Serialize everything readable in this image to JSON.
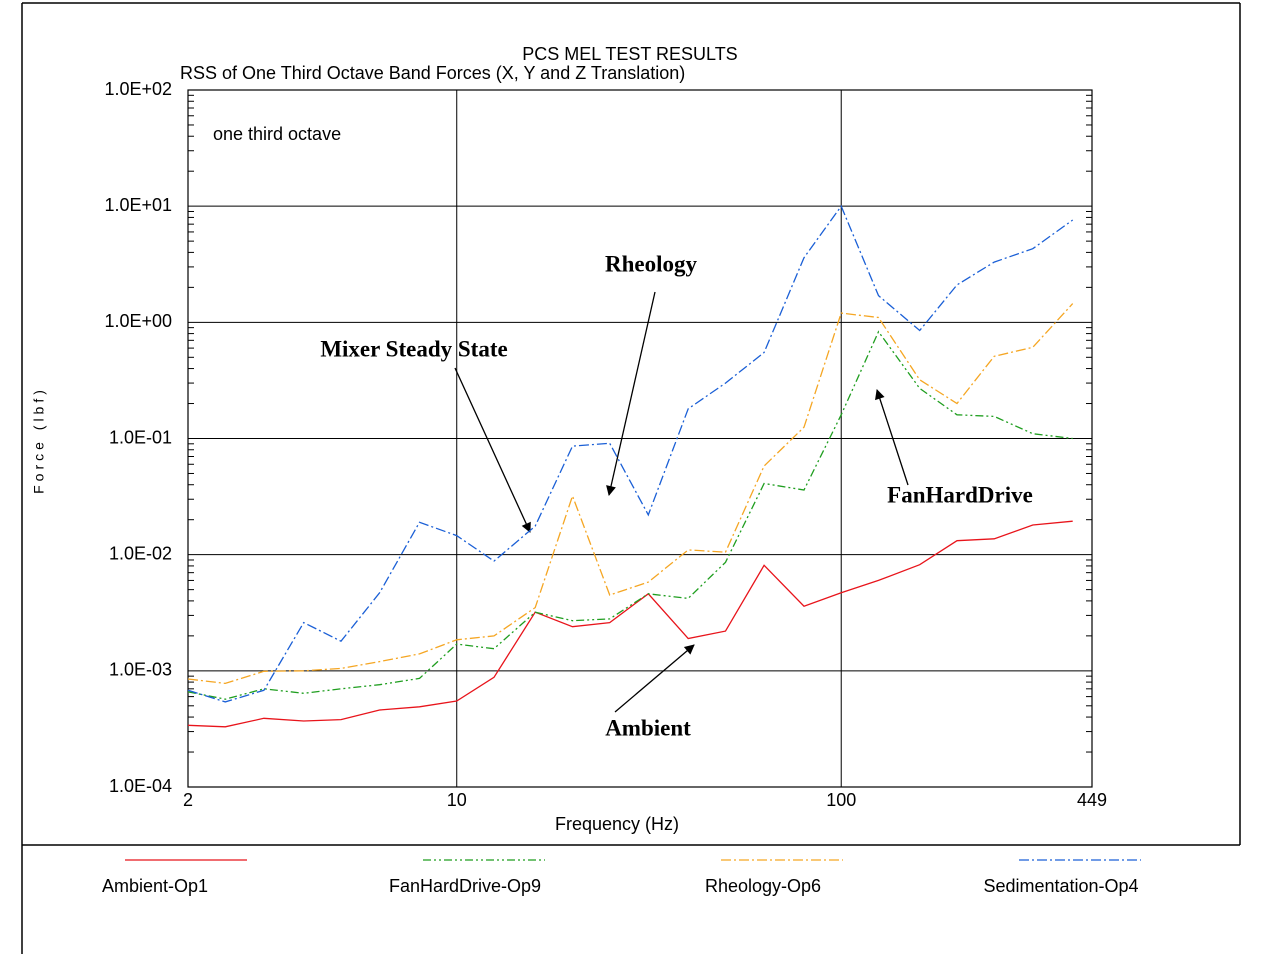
{
  "chart_data": {
    "type": "line",
    "title": "PCS MEL TEST RESULTS",
    "subtitle": "RSS of One Third Octave Band Forces (X, Y and Z Translation)",
    "note": "one third octave",
    "x_label": "Frequency (Hz)",
    "y_label": "Force (lbf)",
    "x_scale": "log",
    "y_scale": "log",
    "grid": true,
    "legend": "bottom",
    "xlim": [
      2,
      449
    ],
    "xticks": [
      2,
      10,
      100,
      449
    ],
    "ylim": [
      0.0001,
      100
    ],
    "yticks": [
      {
        "value": 0.0001,
        "label": "1.0E-04"
      },
      {
        "value": 0.001,
        "label": "1.0E-03"
      },
      {
        "value": 0.01,
        "label": "1.0E-02"
      },
      {
        "value": 0.1,
        "label": "1.0E-01"
      },
      {
        "value": 1,
        "label": "1.0E+00"
      },
      {
        "value": 10,
        "label": "1.0E+01"
      },
      {
        "value": 100,
        "label": "1.0E+02"
      }
    ],
    "x": [
      2,
      2.5,
      3.15,
      4,
      5,
      6.3,
      8,
      10,
      12.5,
      16,
      20,
      25,
      31.5,
      40,
      50,
      63,
      80,
      100,
      125,
      160,
      200,
      250,
      315,
      400
    ],
    "series": [
      {
        "name": "Ambient-Op1",
        "color": "#e8141b",
        "dash": "solid",
        "values": [
          0.00034,
          0.00033,
          0.00039,
          0.00037,
          0.00038,
          0.00046,
          0.00049,
          0.00055,
          0.00088,
          0.0032,
          0.0024,
          0.0026,
          0.0046,
          0.0019,
          0.0022,
          0.0081,
          0.0036,
          0.0047,
          0.006,
          0.0082,
          0.0132,
          0.0137,
          0.018,
          0.0194
        ]
      },
      {
        "name": "FanHardDrive-Op9",
        "color": "#1f9e1f",
        "dash": "dashdotdot",
        "values": [
          0.00066,
          0.00057,
          0.0007,
          0.00064,
          0.0007,
          0.00076,
          0.00086,
          0.0017,
          0.00155,
          0.0032,
          0.0027,
          0.0028,
          0.0046,
          0.0042,
          0.0086,
          0.041,
          0.036,
          0.16,
          0.83,
          0.27,
          0.16,
          0.155,
          0.11,
          0.1
        ]
      },
      {
        "name": "Rheology-Op6",
        "color": "#f5a623",
        "dash": "dashdot",
        "values": [
          0.00085,
          0.00078,
          0.00099,
          0.001,
          0.00105,
          0.0012,
          0.0014,
          0.00185,
          0.002,
          0.0035,
          0.032,
          0.0045,
          0.0058,
          0.011,
          0.0105,
          0.058,
          0.125,
          1.2,
          1.1,
          0.32,
          0.2,
          0.51,
          0.61,
          1.45
        ]
      },
      {
        "name": "Sedimentation-Op4",
        "color": "#1a5fd6",
        "dash": "dashdot",
        "values": [
          0.00068,
          0.00054,
          0.00068,
          0.0026,
          0.0018,
          0.0047,
          0.019,
          0.0146,
          0.0088,
          0.0176,
          0.086,
          0.091,
          0.022,
          0.18,
          0.3,
          0.55,
          3.6,
          10,
          1.7,
          0.85,
          2.1,
          3.3,
          4.3,
          7.6
        ]
      }
    ],
    "annotations": [
      "Rheology",
      "Mixer Steady State",
      "FanHardDrive",
      "Ambient"
    ]
  }
}
